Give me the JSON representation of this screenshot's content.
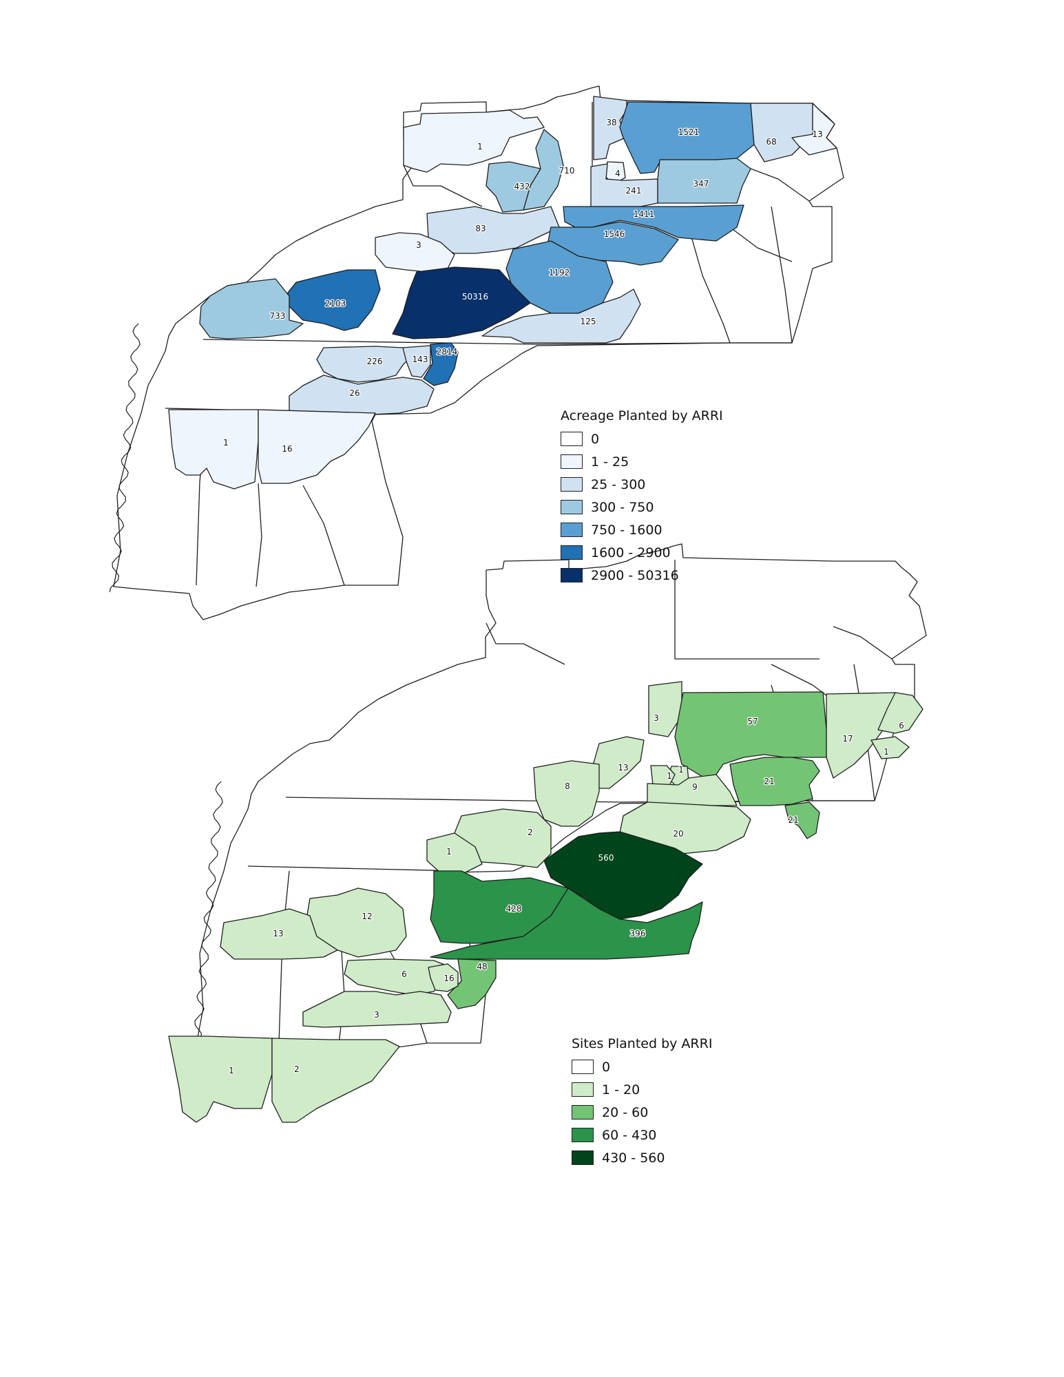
{
  "maps": [
    {
      "id": "acreage",
      "legend": {
        "title": "Acreage Planted by ARRI",
        "classes": [
          {
            "label": "0",
            "color": "#ffffff"
          },
          {
            "label": "1 - 25",
            "color": "#eef5fc"
          },
          {
            "label": "25 - 300",
            "color": "#d0e1f2"
          },
          {
            "label": "300 - 750",
            "color": "#9ecae1"
          },
          {
            "label": "750 - 1600",
            "color": "#5a9fd1"
          },
          {
            "label": "1600 - 2900",
            "color": "#2171b5"
          },
          {
            "label": "2900 - 50316",
            "color": "#08306b"
          }
        ]
      },
      "values": [
        {
          "label": "1",
          "value": 1
        },
        {
          "label": "38",
          "value": 38
        },
        {
          "label": "1521",
          "value": 1521
        },
        {
          "label": "68",
          "value": 68
        },
        {
          "label": "13",
          "value": 13
        },
        {
          "label": "710",
          "value": 710
        },
        {
          "label": "432",
          "value": 432
        },
        {
          "label": "4",
          "value": 4
        },
        {
          "label": "241",
          "value": 241
        },
        {
          "label": "347",
          "value": 347
        },
        {
          "label": "1411",
          "value": 1411
        },
        {
          "label": "83",
          "value": 83
        },
        {
          "label": "1546",
          "value": 1546
        },
        {
          "label": "3",
          "value": 3
        },
        {
          "label": "1192",
          "value": 1192
        },
        {
          "label": "2103",
          "value": 2103
        },
        {
          "label": "50316",
          "value": 50316
        },
        {
          "label": "733",
          "value": 733
        },
        {
          "label": "125",
          "value": 125
        },
        {
          "label": "2814",
          "value": 2814
        },
        {
          "label": "226",
          "value": 226
        },
        {
          "label": "143",
          "value": 143
        },
        {
          "label": "26",
          "value": 26
        },
        {
          "label": "1",
          "value": 1
        },
        {
          "label": "16",
          "value": 16
        }
      ]
    },
    {
      "id": "sites",
      "legend": {
        "title": "Sites Planted by ARRI",
        "classes": [
          {
            "label": "0",
            "color": "#ffffff"
          },
          {
            "label": "1 - 20",
            "color": "#cfebc8"
          },
          {
            "label": "20 - 60",
            "color": "#74c476"
          },
          {
            "label": "60 - 430",
            "color": "#2b934a"
          },
          {
            "label": "430 - 560",
            "color": "#00441b"
          }
        ]
      },
      "values": [
        {
          "label": "3",
          "value": 3
        },
        {
          "label": "57",
          "value": 57
        },
        {
          "label": "17",
          "value": 17
        },
        {
          "label": "6",
          "value": 6
        },
        {
          "label": "1",
          "value": 1
        },
        {
          "label": "1",
          "value": 1
        },
        {
          "label": "13",
          "value": 13
        },
        {
          "label": "8",
          "value": 8
        },
        {
          "label": "1",
          "value": 1
        },
        {
          "label": "9",
          "value": 9
        },
        {
          "label": "21",
          "value": 21
        },
        {
          "label": "21",
          "value": 21
        },
        {
          "label": "2",
          "value": 2
        },
        {
          "label": "20",
          "value": 20
        },
        {
          "label": "1",
          "value": 1
        },
        {
          "label": "560",
          "value": 560
        },
        {
          "label": "428",
          "value": 428
        },
        {
          "label": "12",
          "value": 12
        },
        {
          "label": "13",
          "value": 13
        },
        {
          "label": "396",
          "value": 396
        },
        {
          "label": "48",
          "value": 48
        },
        {
          "label": "6",
          "value": 6
        },
        {
          "label": "16",
          "value": 16
        },
        {
          "label": "3",
          "value": 3
        },
        {
          "label": "1",
          "value": 1
        },
        {
          "label": "2",
          "value": 2
        }
      ]
    }
  ]
}
